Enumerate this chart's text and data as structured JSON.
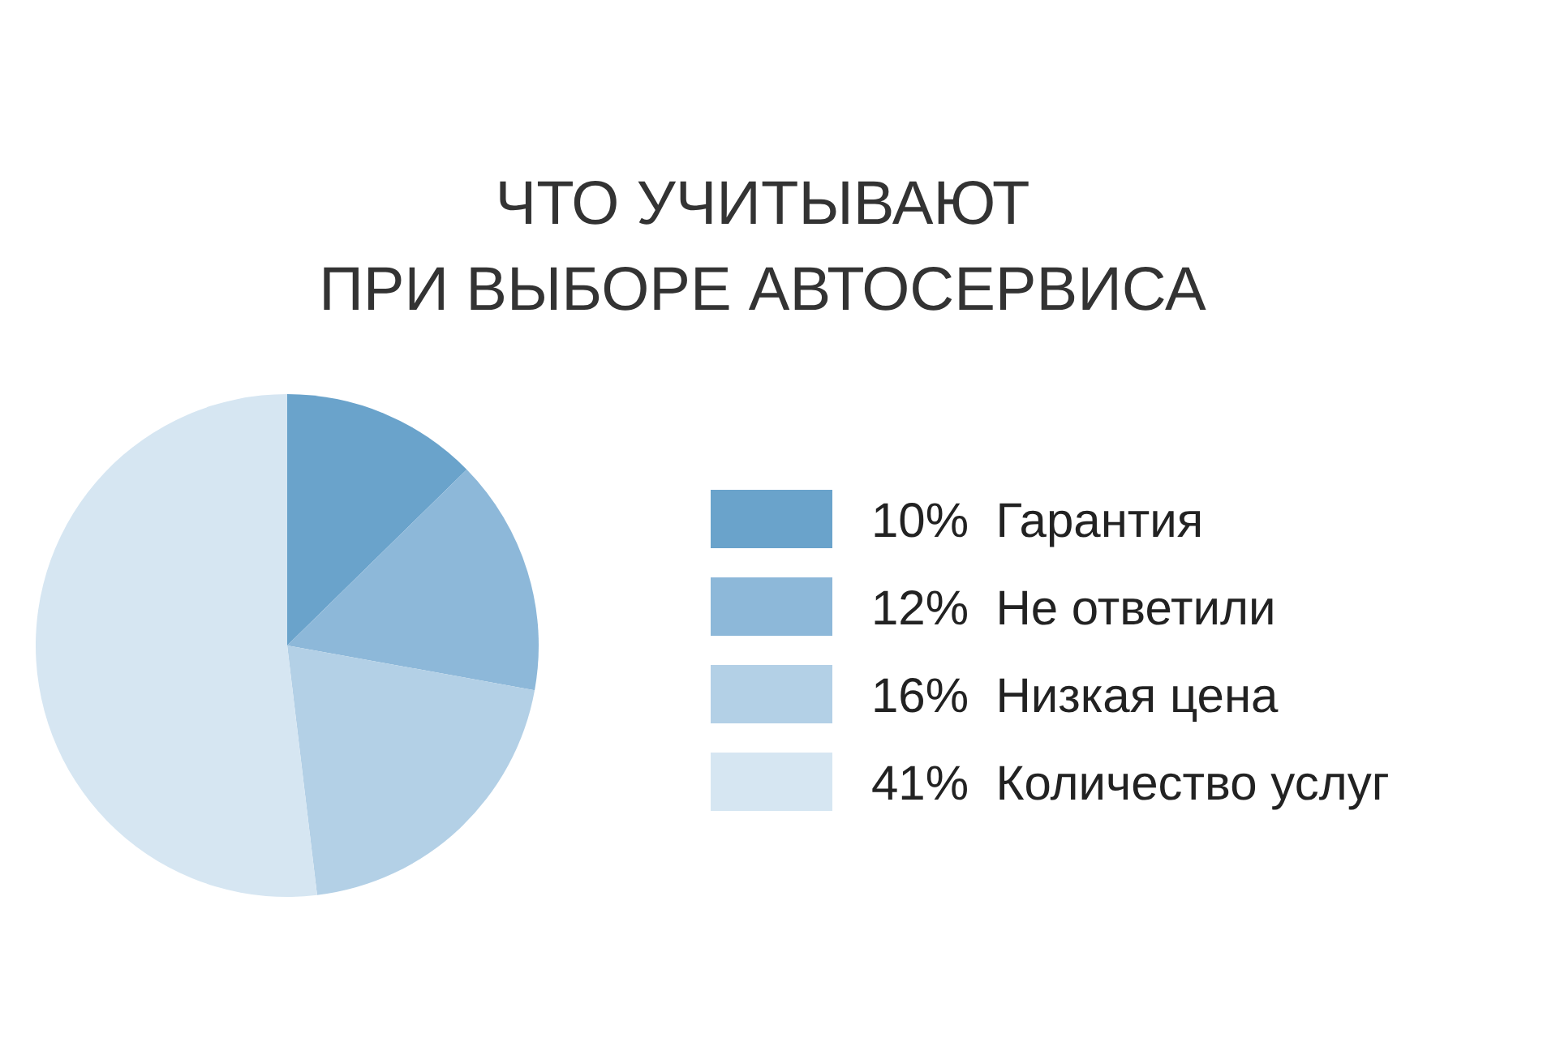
{
  "chart_data": {
    "type": "pie",
    "title": "ЧТО УЧИТЫВАЮТ\nПРИ ВЫБОРЕ АВТОСЕРВИСА",
    "categories": [
      "Гарантия",
      "Не ответили",
      "Низкая цена",
      "Количество услуг"
    ],
    "values": [
      10,
      12,
      16,
      41
    ],
    "value_labels": [
      "10%",
      "12%",
      "16%",
      "41%"
    ],
    "colors": [
      "#6aa3cb",
      "#8db8d9",
      "#b3d0e6",
      "#d6e6f2"
    ],
    "legend": "right"
  }
}
